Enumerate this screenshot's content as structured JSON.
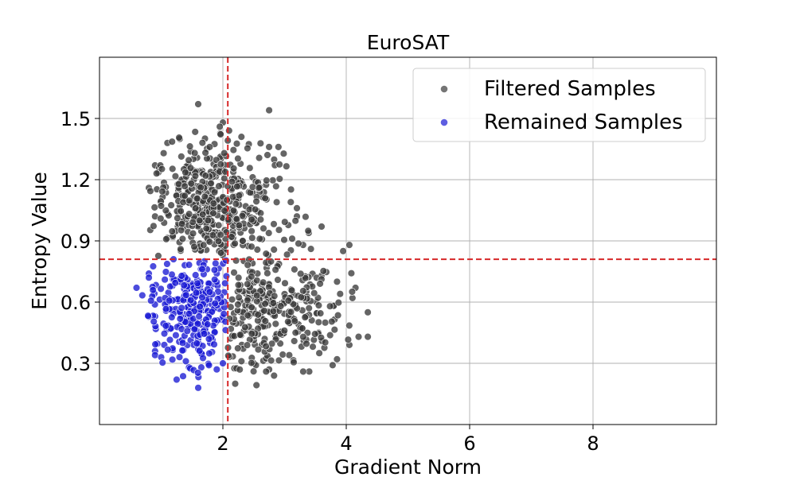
{
  "chart_data": {
    "type": "scatter",
    "title": "EuroSAT",
    "xlabel": "Gradient Norm",
    "ylabel": "Entropy Value",
    "xlim": [
      0,
      10
    ],
    "ylim": [
      0,
      1.8
    ],
    "xticks": [
      2,
      4,
      6,
      8
    ],
    "yticks": [
      0.3,
      0.6,
      0.9,
      1.2,
      1.5
    ],
    "grid": true,
    "legend_position": "top-right",
    "thresholds": {
      "x": 2.08,
      "y": 0.81,
      "color": "#d62728",
      "style": "dashed"
    },
    "series": [
      {
        "name": "Filtered Samples",
        "color": "#3a3a3a",
        "count": 800,
        "points": [
          [
            1.6,
            1.57
          ],
          [
            2.75,
            1.54
          ],
          [
            2.0,
            1.48
          ],
          [
            1.95,
            1.46
          ],
          [
            2.1,
            1.44
          ],
          [
            2.3,
            1.41
          ],
          [
            1.3,
            1.4
          ],
          [
            1.1,
            1.38
          ],
          [
            2.9,
            1.36
          ],
          [
            2.75,
            1.36
          ],
          [
            0.9,
            1.27
          ],
          [
            0.8,
            1.16
          ],
          [
            0.9,
            1.02
          ],
          [
            3.1,
            1.09
          ],
          [
            3.2,
            1.06
          ],
          [
            3.2,
            1.02
          ],
          [
            3.6,
            0.97
          ],
          [
            4.05,
            0.88
          ],
          [
            3.95,
            0.85
          ],
          [
            3.3,
            0.88
          ],
          [
            2.2,
            0.2
          ],
          [
            2.75,
            0.27
          ],
          [
            2.7,
            0.26
          ],
          [
            3.4,
            0.26
          ],
          [
            3.85,
            0.32
          ],
          [
            4.05,
            0.39
          ],
          [
            4.2,
            0.43
          ],
          [
            4.35,
            0.43
          ],
          [
            4.35,
            0.55
          ],
          [
            4.15,
            0.67
          ],
          [
            4.1,
            0.62
          ],
          [
            3.9,
            0.64
          ],
          [
            3.85,
            0.7
          ],
          [
            3.6,
            0.73
          ],
          [
            2.5,
            0.3
          ],
          [
            2.3,
            0.31
          ]
        ]
      },
      {
        "name": "Remained Samples",
        "color": "#1a1ad4",
        "count": 300,
        "points": [
          [
            0.6,
            0.67
          ],
          [
            0.8,
            0.74
          ],
          [
            0.8,
            0.72
          ],
          [
            0.9,
            0.53
          ],
          [
            0.9,
            0.36
          ],
          [
            0.9,
            0.34
          ],
          [
            1.0,
            0.33
          ],
          [
            1.05,
            0.39
          ],
          [
            1.25,
            0.22
          ],
          [
            1.6,
            0.18
          ],
          [
            1.45,
            0.28
          ],
          [
            1.65,
            0.28
          ],
          [
            1.9,
            0.27
          ],
          [
            2.0,
            0.3
          ],
          [
            1.2,
            0.81
          ],
          [
            1.3,
            0.7
          ],
          [
            1.5,
            0.69
          ],
          [
            1.7,
            0.8
          ],
          [
            1.9,
            0.74
          ],
          [
            1.8,
            0.55
          ]
        ]
      }
    ]
  }
}
